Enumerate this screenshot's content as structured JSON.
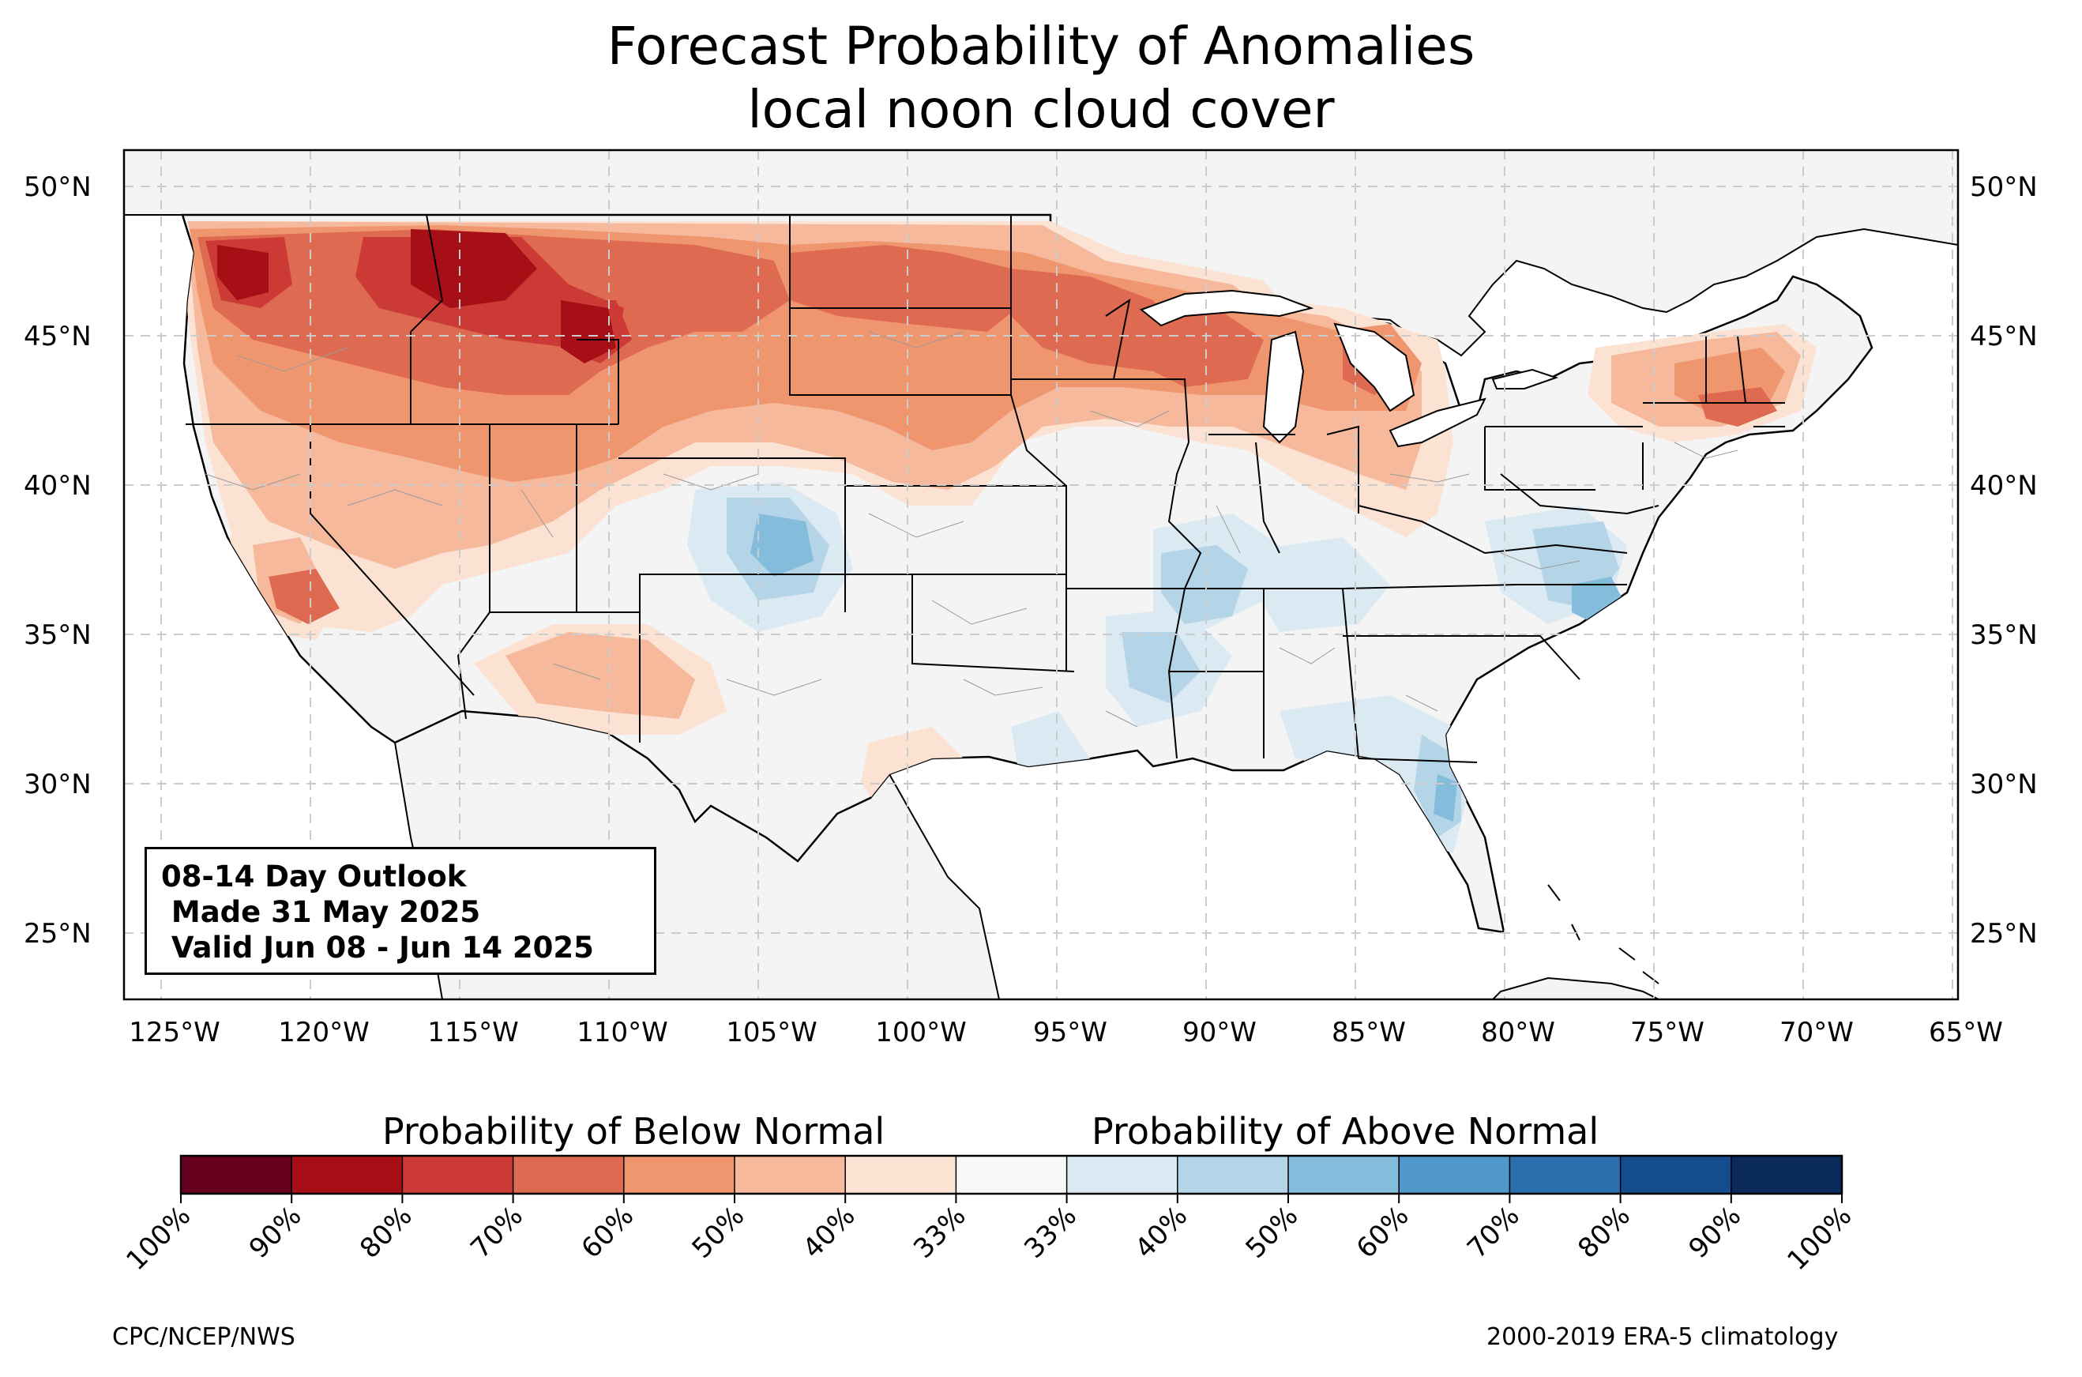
{
  "title": "Forecast Probability of Anomalies",
  "subtitle": "local noon cloud cover",
  "outlook": {
    "line1": "08-14 Day Outlook",
    "line2": " Made 31 May 2025",
    "line3": " Valid Jun 08 - Jun 14 2025"
  },
  "axes": {
    "lat_ticks": [
      "50°N",
      "45°N",
      "40°N",
      "35°N",
      "30°N",
      "25°N"
    ],
    "lon_ticks": [
      "125°W",
      "120°W",
      "115°W",
      "110°W",
      "105°W",
      "100°W",
      "95°W",
      "90°W",
      "85°W",
      "80°W",
      "75°W",
      "70°W",
      "65°W"
    ]
  },
  "colorbar": {
    "below_label": "Probability of Below Normal",
    "above_label": "Probability of Above Normal",
    "tick_labels": [
      "100%",
      "90%",
      "80%",
      "70%",
      "60%",
      "50%",
      "40%",
      "33%",
      "33%",
      "40%",
      "50%",
      "60%",
      "70%",
      "80%",
      "90%",
      "100%"
    ],
    "colors": [
      "#67001f",
      "#a50f15",
      "#cb3a35",
      "#de6a52",
      "#f0966f",
      "#f6b99c",
      "#fbe2d2",
      "#f7f7f7",
      "#dbe9f3",
      "#b4d4e8",
      "#84bcdc",
      "#4f98c9",
      "#2b6faf",
      "#154c8d",
      "#0a2a5c"
    ]
  },
  "credits": {
    "left": "CPC/NCEP/NWS",
    "right": "2000-2019 ERA-5 climatology"
  },
  "map_colors": {
    "land": "#f4f4f4",
    "ocean": "#ffffff",
    "grid": "#cccccc"
  }
}
